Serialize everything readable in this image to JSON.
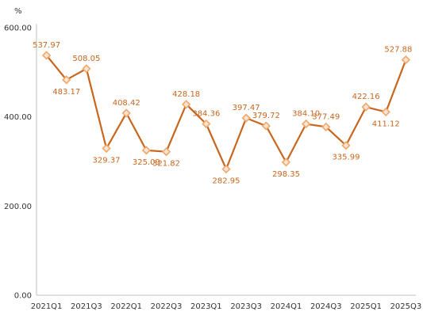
{
  "chart_data": {
    "type": "line",
    "title": "",
    "xlabel": "",
    "ylabel": "%",
    "ylim": [
      0,
      600
    ],
    "yticks": [
      "0.00",
      "200.00",
      "400.00",
      "600.00"
    ],
    "categories": [
      "2021Q1",
      "2021Q2",
      "2021Q3",
      "2021Q4",
      "2022Q1",
      "2022Q2",
      "2022Q3",
      "2022Q4",
      "2023Q1",
      "2023Q2",
      "2023Q3",
      "2023Q4",
      "2024Q1",
      "2024Q2",
      "2024Q3",
      "2024Q4",
      "2025Q1",
      "2025Q2",
      "2025Q3"
    ],
    "x_tick_labels": [
      "2021Q1",
      "2021Q3",
      "2022Q1",
      "2022Q3",
      "2023Q1",
      "2023Q3",
      "2024Q1",
      "2024Q3",
      "2025Q1",
      "2025Q3"
    ],
    "series": [
      {
        "values": [
          537.97,
          483.17,
          508.05,
          329.37,
          408.42,
          325.09,
          321.82,
          428.18,
          384.36,
          282.95,
          397.47,
          379.72,
          298.35,
          384.1,
          377.49,
          335.99,
          422.16,
          411.12,
          527.88
        ],
        "labels": [
          "537.97",
          "483.17",
          "508.05",
          "329.37",
          "408.42",
          "325.09",
          "321.82",
          "428.18",
          "384.36",
          "282.95",
          "397.47",
          "379.72",
          "298.35",
          "384.10",
          "377.49",
          "335.99",
          "422.16",
          "411.12",
          "527.88"
        ],
        "label_pos": [
          "above",
          "below",
          "above",
          "below",
          "above",
          "below",
          "below",
          "above",
          "above",
          "below",
          "above",
          "above",
          "below",
          "above",
          "above",
          "below",
          "above",
          "below",
          "above"
        ]
      }
    ],
    "line_color": "#C8661F",
    "marker_fill": "#FBE3D6",
    "marker_stroke": "#F0A868",
    "label_color": "#C8661F",
    "axis_color": "#BFBFBF",
    "grid": false,
    "legend": "none"
  }
}
